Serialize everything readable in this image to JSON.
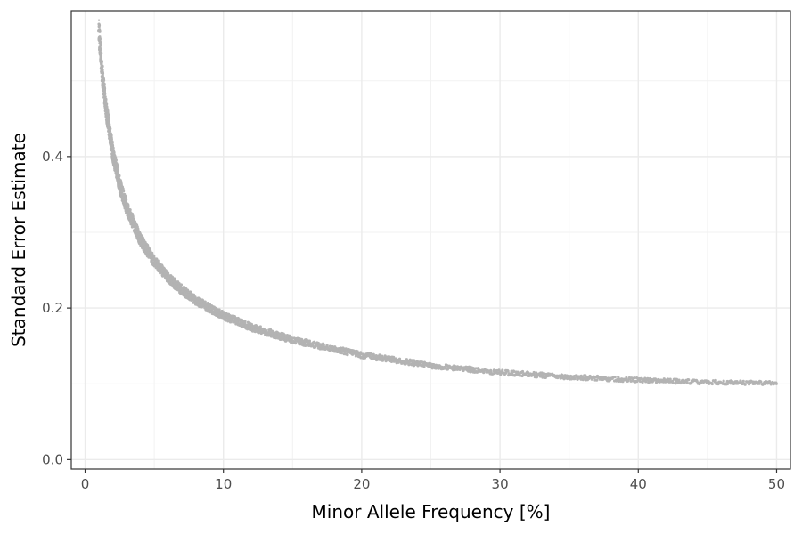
{
  "chart_data": {
    "type": "scatter",
    "title": "",
    "xlabel": "Minor Allele Frequency [%]",
    "ylabel": "Standard Error Estimate",
    "xlim": [
      -1,
      51
    ],
    "ylim": [
      -0.0125,
      0.5925
    ],
    "x_ticks": [
      0,
      10,
      20,
      30,
      40,
      50
    ],
    "x_tick_labels": [
      "0",
      "10",
      "20",
      "30",
      "40",
      "50"
    ],
    "y_ticks": [
      0.0,
      0.2,
      0.4
    ],
    "y_tick_labels": [
      "0.0",
      "0.2",
      "0.4"
    ],
    "grid": true,
    "legend": "none",
    "point_color": "#b3b3b3",
    "series": [
      {
        "x": [
          1,
          1.25,
          1.5,
          2,
          2.5,
          3,
          4,
          5,
          6,
          7,
          8,
          10,
          12,
          15,
          20,
          25,
          30,
          35,
          40,
          45,
          50
        ],
        "y": [
          0.565,
          0.507,
          0.465,
          0.405,
          0.363,
          0.333,
          0.29,
          0.262,
          0.24,
          0.224,
          0.21,
          0.19,
          0.175,
          0.158,
          0.138,
          0.124,
          0.115,
          0.109,
          0.105,
          0.102,
          0.101
        ]
      }
    ]
  }
}
